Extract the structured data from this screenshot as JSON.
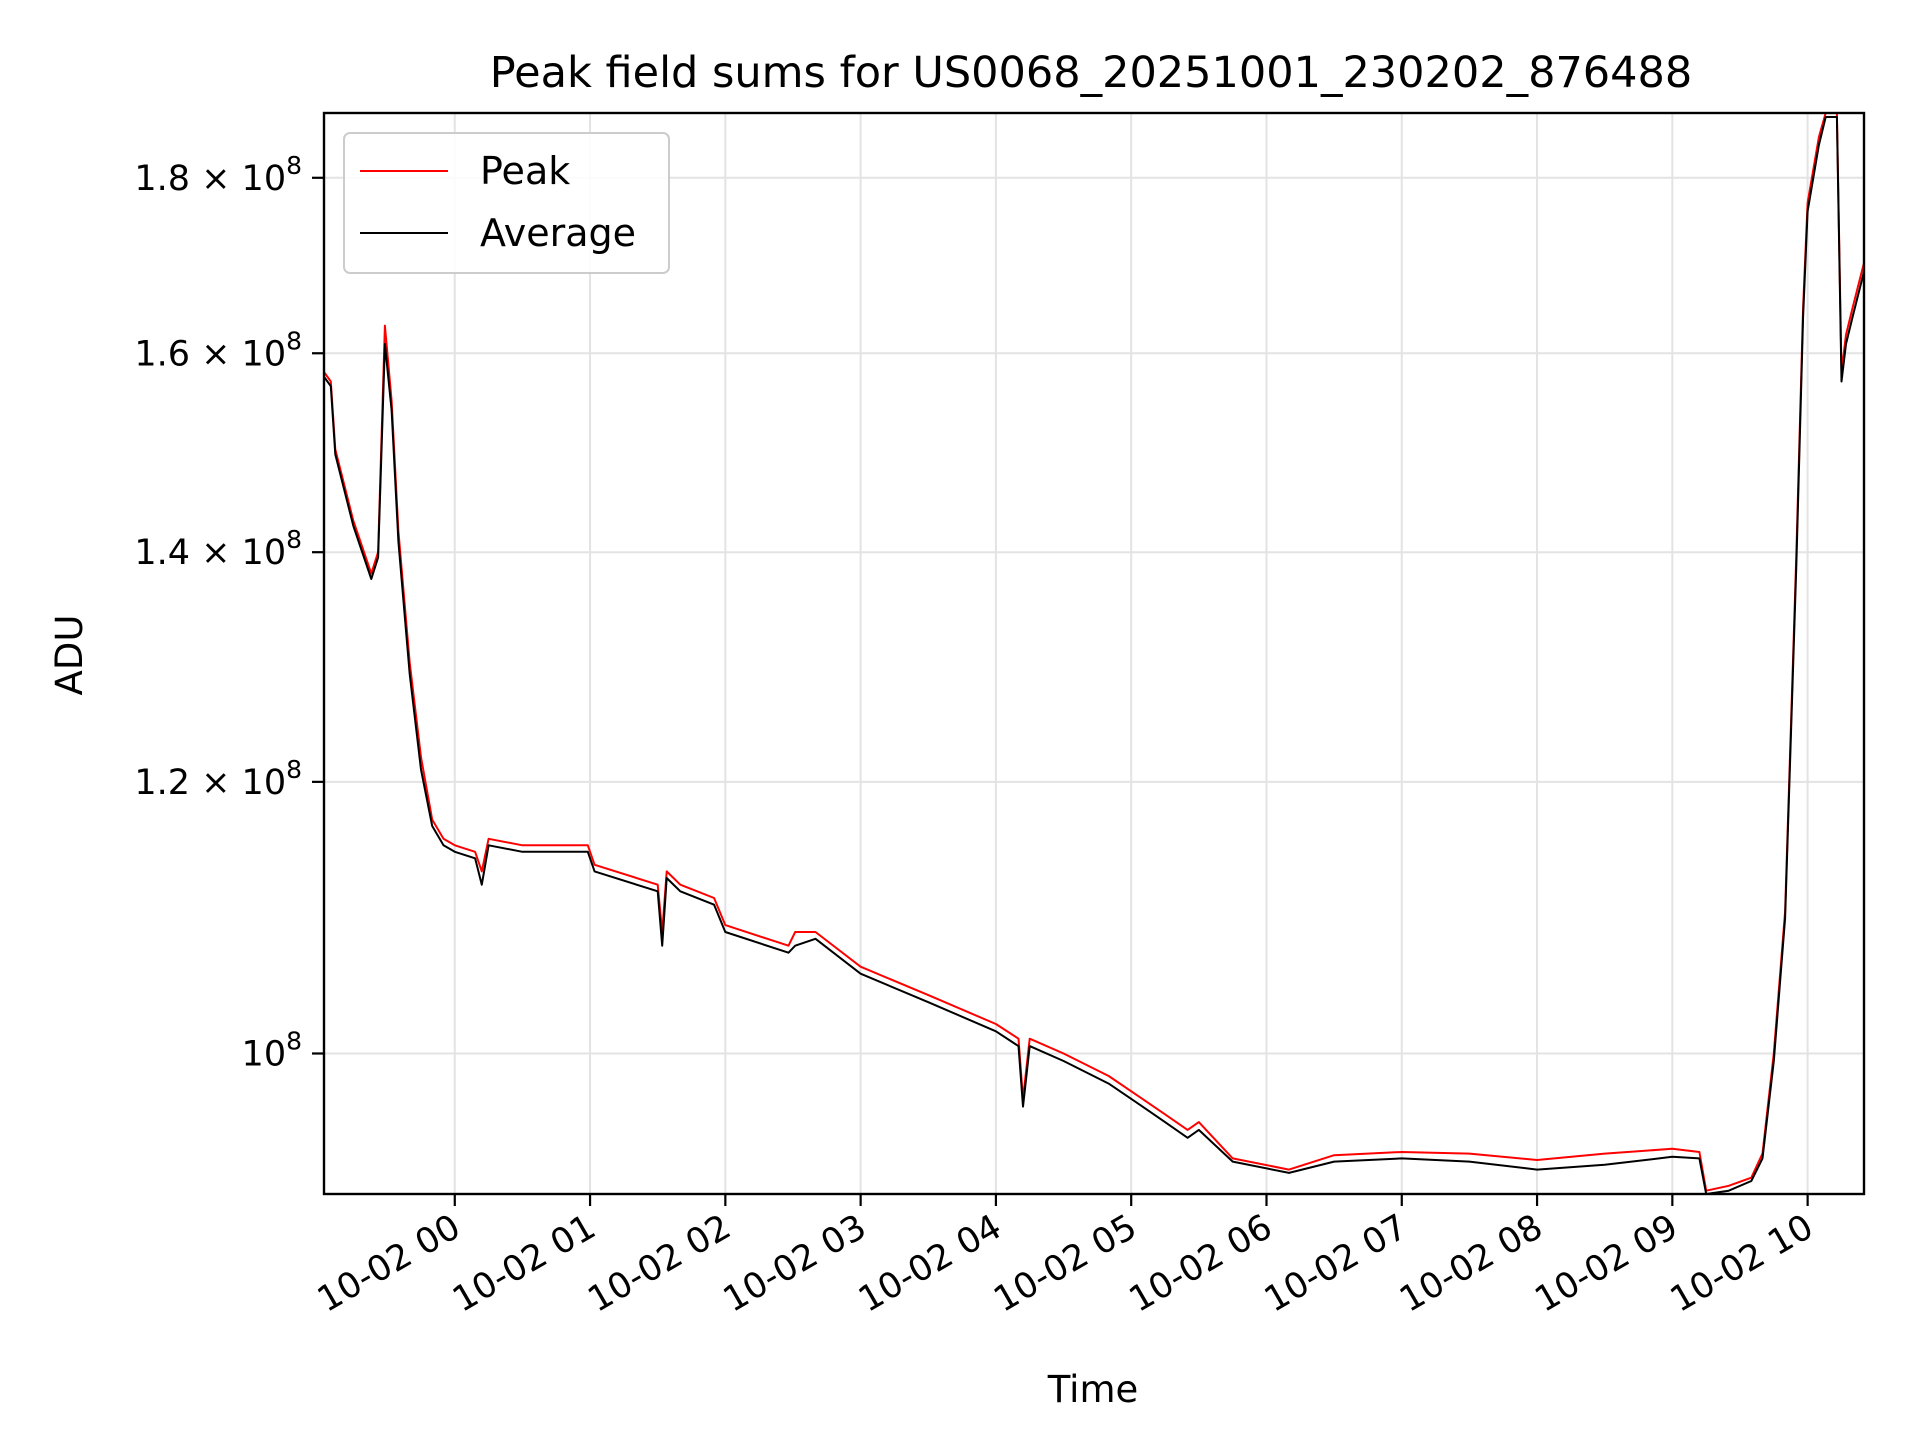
{
  "chart_data": {
    "type": "line",
    "title": "Peak field sums for US0068_20251001_230202_876488",
    "xlabel": "Time",
    "ylabel": "ADU",
    "yscale": "log",
    "grid": true,
    "legend_position": "top-left",
    "xlim": [
      "2025-10-01 23:02",
      "2025-10-02 10:25"
    ],
    "ylim": [
      91000000,
      188000000
    ],
    "x_ticks": [
      "10-02 00",
      "10-02 01",
      "10-02 02",
      "10-02 03",
      "10-02 04",
      "10-02 05",
      "10-02 06",
      "10-02 07",
      "10-02 08",
      "10-02 09",
      "10-02 10"
    ],
    "y_ticks": [
      {
        "value": 100000000,
        "mantissa": "",
        "exponent": "8"
      },
      {
        "value": 120000000,
        "mantissa": "1.2",
        "exponent": "8"
      },
      {
        "value": 140000000,
        "mantissa": "1.4",
        "exponent": "8"
      },
      {
        "value": 160000000,
        "mantissa": "1.6",
        "exponent": "8"
      },
      {
        "value": 180000000,
        "mantissa": "1.8",
        "exponent": "8"
      }
    ],
    "series": [
      {
        "name": "Peak",
        "color": "#ff0000",
        "x": [
          "2025-10-01 23:02",
          "2025-10-01 23:05",
          "2025-10-01 23:07",
          "2025-10-01 23:15",
          "2025-10-01 23:23",
          "2025-10-01 23:26",
          "2025-10-01 23:29",
          "2025-10-01 23:32",
          "2025-10-01 23:35",
          "2025-10-01 23:40",
          "2025-10-01 23:45",
          "2025-10-01 23:50",
          "2025-10-01 23:55",
          "2025-10-02 00:00",
          "2025-10-02 00:09",
          "2025-10-02 00:12",
          "2025-10-02 00:15",
          "2025-10-02 00:30",
          "2025-10-02 00:59",
          "2025-10-02 01:02",
          "2025-10-02 01:30",
          "2025-10-02 01:32",
          "2025-10-02 01:34",
          "2025-10-02 01:40",
          "2025-10-02 01:55",
          "2025-10-02 02:00",
          "2025-10-02 02:28",
          "2025-10-02 02:31",
          "2025-10-02 02:40",
          "2025-10-02 03:00",
          "2025-10-02 03:30",
          "2025-10-02 04:00",
          "2025-10-02 04:10",
          "2025-10-02 04:12",
          "2025-10-02 04:15",
          "2025-10-02 04:30",
          "2025-10-02 04:50",
          "2025-10-02 05:05",
          "2025-10-02 05:15",
          "2025-10-02 05:25",
          "2025-10-02 05:30",
          "2025-10-02 05:45",
          "2025-10-02 06:10",
          "2025-10-02 06:30",
          "2025-10-02 07:00",
          "2025-10-02 07:30",
          "2025-10-02 08:00",
          "2025-10-02 08:30",
          "2025-10-02 09:00",
          "2025-10-02 09:12",
          "2025-10-02 09:15",
          "2025-10-02 09:25",
          "2025-10-02 09:35",
          "2025-10-02 09:40",
          "2025-10-02 09:45",
          "2025-10-02 09:50",
          "2025-10-02 09:55",
          "2025-10-02 09:58",
          "2025-10-02 10:00",
          "2025-10-02 10:05",
          "2025-10-02 10:08",
          "2025-10-02 10:13",
          "2025-10-02 10:15",
          "2025-10-02 10:17",
          "2025-10-02 10:20",
          "2025-10-02 10:25"
        ],
        "y": [
          158000000,
          157000000,
          150000000,
          143000000,
          138000000,
          140000000,
          163000000,
          155000000,
          142000000,
          130000000,
          122000000,
          117000000,
          115500000,
          115000000,
          114500000,
          113000000,
          115500000,
          115000000,
          115000000,
          113500000,
          112000000,
          108500000,
          113000000,
          112000000,
          111000000,
          109000000,
          107500000,
          108500000,
          108500000,
          106000000,
          104000000,
          102000000,
          101000000,
          97000000,
          101000000,
          100000000,
          98500000,
          97000000,
          96000000,
          95000000,
          95500000,
          93200000,
          92500000,
          93400000,
          93600000,
          93500000,
          93100000,
          93500000,
          93800000,
          93600000,
          91200000,
          91500000,
          92000000,
          93500000,
          100000000,
          110000000,
          140000000,
          165000000,
          177000000,
          185000000,
          188000000,
          188000000,
          158000000,
          162000000,
          165000000,
          170000000
        ]
      },
      {
        "name": "Average",
        "color": "#000000",
        "x": [
          "2025-10-01 23:02",
          "2025-10-01 23:05",
          "2025-10-01 23:07",
          "2025-10-01 23:15",
          "2025-10-01 23:23",
          "2025-10-01 23:26",
          "2025-10-01 23:29",
          "2025-10-01 23:32",
          "2025-10-01 23:35",
          "2025-10-01 23:40",
          "2025-10-01 23:45",
          "2025-10-01 23:50",
          "2025-10-01 23:55",
          "2025-10-02 00:00",
          "2025-10-02 00:09",
          "2025-10-02 00:12",
          "2025-10-02 00:15",
          "2025-10-02 00:30",
          "2025-10-02 00:59",
          "2025-10-02 01:02",
          "2025-10-02 01:30",
          "2025-10-02 01:32",
          "2025-10-02 01:34",
          "2025-10-02 01:40",
          "2025-10-02 01:55",
          "2025-10-02 02:00",
          "2025-10-02 02:28",
          "2025-10-02 02:31",
          "2025-10-02 02:40",
          "2025-10-02 03:00",
          "2025-10-02 03:30",
          "2025-10-02 04:00",
          "2025-10-02 04:10",
          "2025-10-02 04:12",
          "2025-10-02 04:15",
          "2025-10-02 04:30",
          "2025-10-02 04:50",
          "2025-10-02 05:05",
          "2025-10-02 05:15",
          "2025-10-02 05:25",
          "2025-10-02 05:30",
          "2025-10-02 05:45",
          "2025-10-02 06:10",
          "2025-10-02 06:30",
          "2025-10-02 07:00",
          "2025-10-02 07:30",
          "2025-10-02 08:00",
          "2025-10-02 08:30",
          "2025-10-02 09:00",
          "2025-10-02 09:12",
          "2025-10-02 09:15",
          "2025-10-02 09:25",
          "2025-10-02 09:35",
          "2025-10-02 09:40",
          "2025-10-02 09:45",
          "2025-10-02 09:50",
          "2025-10-02 09:55",
          "2025-10-02 09:58",
          "2025-10-02 10:00",
          "2025-10-02 10:05",
          "2025-10-02 10:08",
          "2025-10-02 10:13",
          "2025-10-02 10:15",
          "2025-10-02 10:17",
          "2025-10-02 10:20",
          "2025-10-02 10:25"
        ],
        "y": [
          157500000,
          156500000,
          149500000,
          142500000,
          137500000,
          139500000,
          161000000,
          154000000,
          141000000,
          129000000,
          121000000,
          116500000,
          115000000,
          114500000,
          114000000,
          112000000,
          115000000,
          114500000,
          114500000,
          113000000,
          111500000,
          107500000,
          112500000,
          111500000,
          110500000,
          108500000,
          107000000,
          107500000,
          108000000,
          105500000,
          103500000,
          101500000,
          100500000,
          96500000,
          100500000,
          99500000,
          98000000,
          96500000,
          95500000,
          94500000,
          95000000,
          93000000,
          92300000,
          93000000,
          93200000,
          93000000,
          92500000,
          92800000,
          93300000,
          93200000,
          91000000,
          91200000,
          91800000,
          93200000,
          99500000,
          109500000,
          139000000,
          164000000,
          176000000,
          184000000,
          187500000,
          187500000,
          157000000,
          161000000,
          164000000,
          169000000
        ]
      }
    ]
  }
}
